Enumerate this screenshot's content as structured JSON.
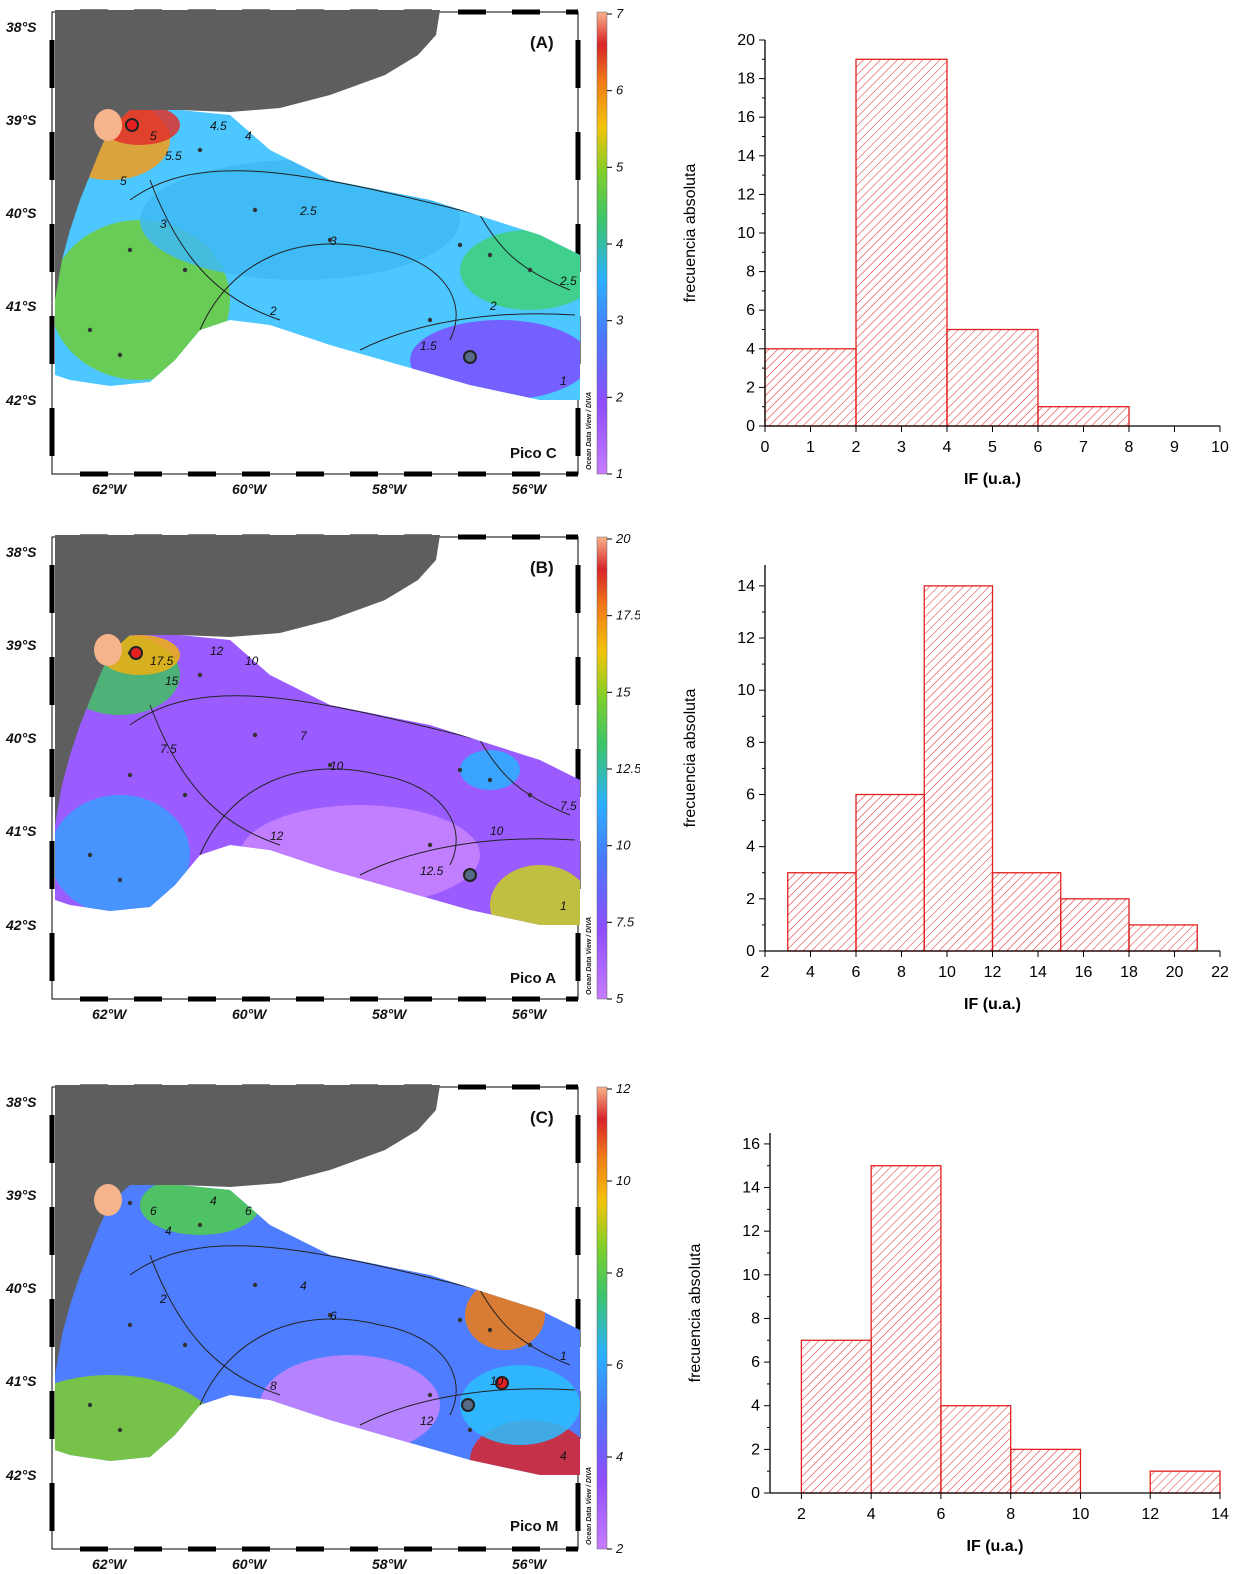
{
  "panels": [
    {
      "tag": "(A)",
      "peak": "Pico C",
      "colorbar": {
        "ticks": [
          "7",
          "6",
          "5",
          "4",
          "3",
          "2",
          "1"
        ],
        "min": 0.5,
        "max": 7
      },
      "contour_labels": [
        "5",
        "5.5",
        "4.5",
        "4",
        "3",
        "2.5",
        "3",
        "2",
        "2",
        "2.5",
        "1.5",
        "1",
        "5"
      ],
      "lat_labels": [
        "38°S",
        "39°S",
        "40°S",
        "41°S",
        "42°S"
      ],
      "lon_labels": [
        "62°W",
        "60°W",
        "58°W",
        "56°W"
      ],
      "odv_credit": "Ocean Data View / DIVA"
    },
    {
      "tag": "(B)",
      "peak": "Pico A",
      "colorbar": {
        "ticks": [
          "20",
          "17.5",
          "15",
          "12.5",
          "10",
          "7.5",
          "5"
        ],
        "min": 5,
        "max": 20
      },
      "contour_labels": [
        "17.5",
        "15",
        "12",
        "10",
        "7.5",
        "7",
        "10",
        "12",
        "10",
        "7.5",
        "12.5",
        "1"
      ],
      "lat_labels": [
        "38°S",
        "39°S",
        "40°S",
        "41°S",
        "42°S"
      ],
      "lon_labels": [
        "62°W",
        "60°W",
        "58°W",
        "56°W"
      ],
      "odv_credit": "Ocean Data View / DIVA"
    },
    {
      "tag": "(C)",
      "peak": "Pico M",
      "colorbar": {
        "ticks": [
          "12",
          "10",
          "8",
          "6",
          "4",
          "2"
        ],
        "min": 2,
        "max": 13
      },
      "contour_labels": [
        "6",
        "4",
        "4",
        "6",
        "2",
        "4",
        "6",
        "8",
        "10",
        "1",
        "12",
        "4"
      ],
      "lat_labels": [
        "38°S",
        "39°S",
        "40°S",
        "41°S",
        "42°S"
      ],
      "lon_labels": [
        "62°W",
        "60°W",
        "58°W",
        "56°W"
      ],
      "odv_credit": "Ocean Data View / DIVA"
    }
  ],
  "chart_data": [
    {
      "type": "bar",
      "xlabel": "IF (u.a.)",
      "ylabel": "frecuencia absoluta",
      "bins": [
        [
          0,
          2
        ],
        [
          2,
          4
        ],
        [
          4,
          6
        ],
        [
          6,
          8
        ]
      ],
      "values": [
        4,
        19,
        5,
        1
      ],
      "xlim": [
        0,
        10
      ],
      "xticks": [
        0,
        1,
        2,
        3,
        4,
        5,
        6,
        7,
        8,
        9,
        10
      ],
      "ylim": [
        0,
        20
      ],
      "yticks": [
        0,
        2,
        4,
        6,
        8,
        10,
        12,
        14,
        16,
        18,
        20
      ],
      "bar_color": "#e02020"
    },
    {
      "type": "bar",
      "xlabel": "IF (u.a.)",
      "ylabel": "frecuencia absoluta",
      "bins": [
        [
          3,
          6
        ],
        [
          6,
          9
        ],
        [
          9,
          12
        ],
        [
          12,
          15
        ],
        [
          15,
          18
        ],
        [
          18,
          21
        ]
      ],
      "values": [
        3,
        6,
        14,
        3,
        2,
        1
      ],
      "xlim": [
        2,
        22
      ],
      "xticks": [
        2,
        4,
        6,
        8,
        10,
        12,
        14,
        16,
        18,
        20,
        22
      ],
      "ylim": [
        0,
        14.8
      ],
      "yticks": [
        0,
        2,
        4,
        6,
        8,
        10,
        12,
        14
      ],
      "bar_color": "#e02020"
    },
    {
      "type": "bar",
      "xlabel": "IF (u.a.)",
      "ylabel": "frecuencia absoluta",
      "bins": [
        [
          2,
          4
        ],
        [
          4,
          6
        ],
        [
          6,
          8
        ],
        [
          8,
          10
        ],
        [
          12,
          14
        ]
      ],
      "values": [
        7,
        15,
        4,
        2,
        1
      ],
      "xlim": [
        1.1,
        14
      ],
      "xticks": [
        2,
        4,
        6,
        8,
        10,
        12,
        14
      ],
      "ylim": [
        0,
        16.5
      ],
      "yticks": [
        0,
        2,
        4,
        6,
        8,
        10,
        12,
        14,
        16
      ],
      "bar_color": "#e02020"
    }
  ]
}
